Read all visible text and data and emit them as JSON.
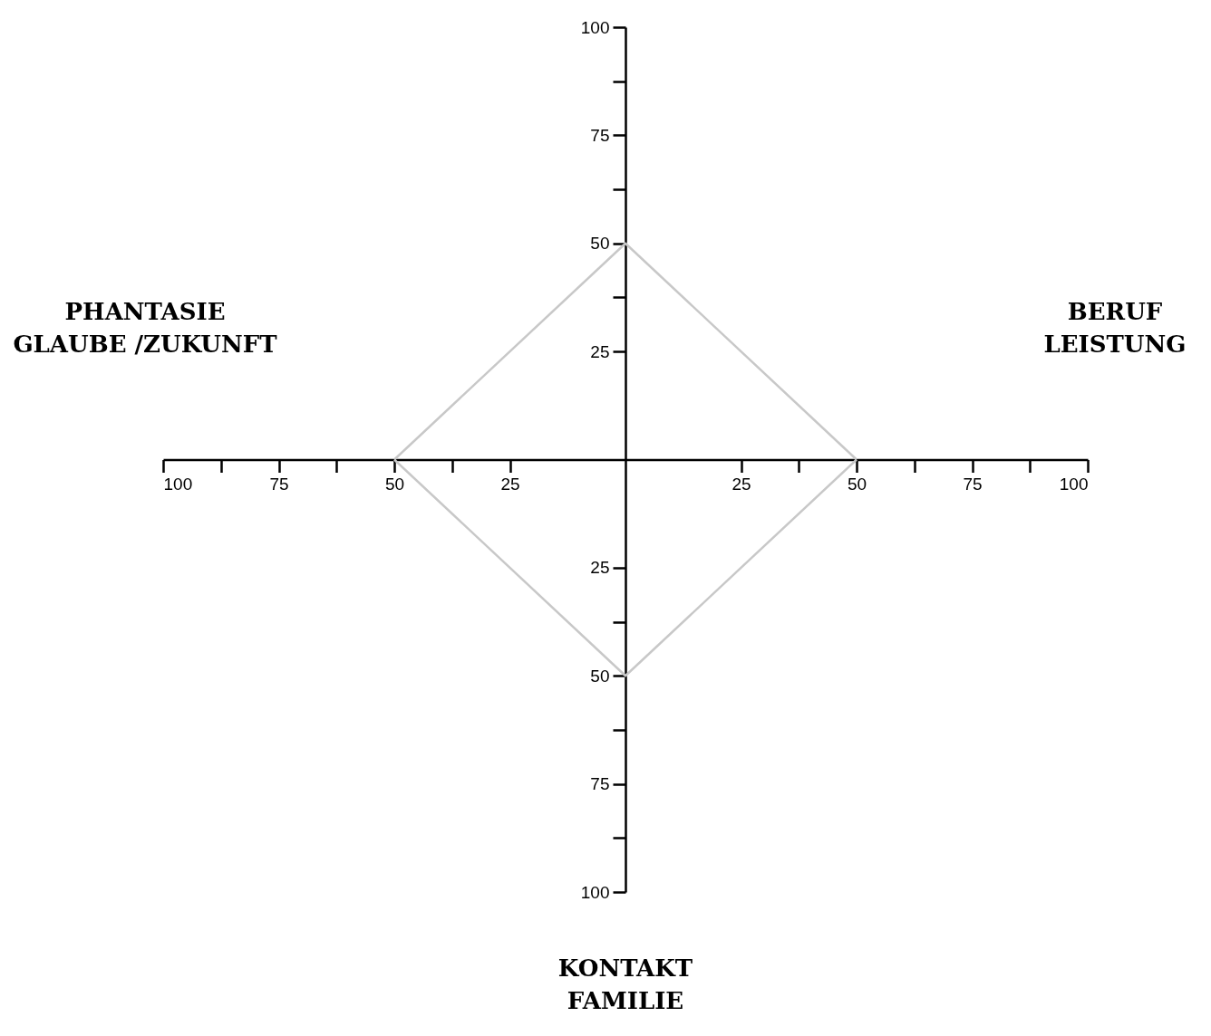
{
  "chart_data": {
    "type": "line",
    "series": [
      {
        "color": "#c8c8c8",
        "x": [
          -50,
          0,
          50
        ],
        "values": [
          0,
          50,
          0
        ]
      },
      {
        "color": "#c8c8c8",
        "x": [
          -50,
          0,
          50
        ],
        "values": [
          0,
          -50,
          0
        ]
      }
    ],
    "xlim": [
      -100,
      100
    ],
    "xticks": [
      {
        "value": -100,
        "label": "100"
      },
      {
        "value": -87.5,
        "label": null
      },
      {
        "value": -75,
        "label": "75"
      },
      {
        "value": -62.5,
        "label": null
      },
      {
        "value": -50,
        "label": "50"
      },
      {
        "value": -37.5,
        "label": null
      },
      {
        "value": -25,
        "label": "25"
      },
      {
        "value": 25,
        "label": "25"
      },
      {
        "value": 37.5,
        "label": null
      },
      {
        "value": 50,
        "label": "50"
      },
      {
        "value": 62.5,
        "label": null
      },
      {
        "value": 75,
        "label": "75"
      },
      {
        "value": 87.5,
        "label": null
      },
      {
        "value": 100,
        "label": "100"
      }
    ],
    "ylim": [
      -100,
      100
    ],
    "yticks": [
      {
        "value": -100,
        "label": "100"
      },
      {
        "value": -87.5,
        "label": null
      },
      {
        "value": -75,
        "label": "75"
      },
      {
        "value": -62.5,
        "label": null
      },
      {
        "value": -50,
        "label": "50"
      },
      {
        "value": -37.5,
        "label": null
      },
      {
        "value": -25,
        "label": "25"
      },
      {
        "value": 25,
        "label": "25"
      },
      {
        "value": 37.5,
        "label": null
      },
      {
        "value": 50,
        "label": "50"
      },
      {
        "value": 62.5,
        "label": null
      },
      {
        "value": 75,
        "label": "75"
      },
      {
        "value": 87.5,
        "label": null
      },
      {
        "value": 100,
        "label": "100"
      }
    ],
    "annotations": [
      "PHANTASIE\nGLAUBE /ZUKUNFT",
      "BERUF\nLEISTUNG",
      "KONTAKT\nFAMILIE"
    ],
    "grid": false
  }
}
